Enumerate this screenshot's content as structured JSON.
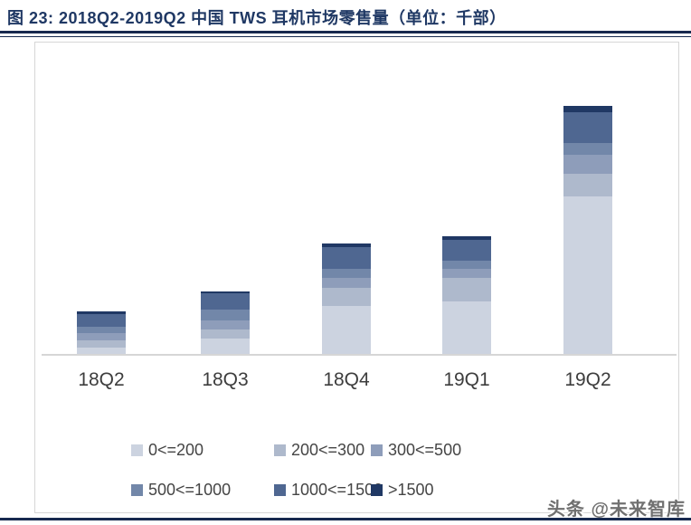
{
  "header": {
    "title": "图 23:  2018Q2-2019Q2 中国 TWS 耳机市场零售量（单位：千部）"
  },
  "watermark": "头条 @未来智库",
  "chart_data": {
    "type": "bar",
    "stacked": true,
    "title": "2018Q2-2019Q2 中国 TWS 耳机市场零售量",
    "unit": "千部",
    "categories": [
      "18Q2",
      "18Q3",
      "18Q4",
      "19Q1",
      "19Q2"
    ],
    "series": [
      {
        "name": "0<=200",
        "color": "#ccd3e0",
        "values": [
          7,
          17,
          53,
          58,
          174
        ]
      },
      {
        "name": "200<=300",
        "color": "#aeb9cc",
        "values": [
          8,
          10,
          20,
          26,
          25
        ]
      },
      {
        "name": "300<=500",
        "color": "#8e9dba",
        "values": [
          8,
          10,
          11,
          10,
          21
        ]
      },
      {
        "name": "500<=1000",
        "color": "#7287a9",
        "values": [
          7,
          12,
          10,
          9,
          13
        ]
      },
      {
        "name": "1000<=1500",
        "color": "#4f6791",
        "values": [
          14,
          18,
          24,
          23,
          34
        ]
      },
      {
        "name": ">1500",
        "color": "#203864",
        "values": [
          3,
          2,
          4,
          4,
          7
        ]
      }
    ],
    "value_note": "no y-axis labels shown; values estimated as relative heights (px) of each stacked segment",
    "xlabel": "",
    "ylabel": "",
    "grid": false,
    "legend_position": "bottom"
  }
}
